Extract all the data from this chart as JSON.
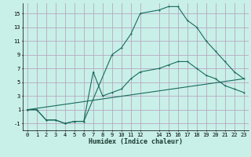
{
  "title": "",
  "xlabel": "Humidex (Indice chaleur)",
  "bg_color": "#c8f0e8",
  "grid_color": "#b8a8c0",
  "line_color": "#1a6b5e",
  "series1_x": [
    0,
    1,
    2,
    3,
    4,
    5,
    6,
    9,
    10,
    11,
    12,
    14,
    15,
    16,
    17,
    18,
    19,
    20,
    21,
    22,
    23
  ],
  "series1_y": [
    1,
    1,
    -0.5,
    -0.5,
    -1,
    -0.7,
    -0.7,
    9,
    10,
    12,
    15,
    15.5,
    16,
    16,
    14,
    13,
    11,
    9.5,
    8,
    6.5,
    5.5
  ],
  "series2_x": [
    0,
    1,
    2,
    3,
    4,
    5,
    6,
    7,
    8,
    9,
    10,
    11,
    12,
    14,
    15,
    16,
    17,
    18,
    19,
    20,
    21,
    22,
    23
  ],
  "series2_y": [
    1,
    1,
    -0.5,
    -0.5,
    -1,
    -0.7,
    -0.7,
    6.5,
    3,
    3.5,
    4,
    5.5,
    6.5,
    7,
    7.5,
    8,
    8,
    7,
    6,
    5.5,
    4.5,
    4,
    3.5
  ],
  "series3_x": [
    0,
    23
  ],
  "series3_y": [
    1,
    5.5
  ],
  "xlim": [
    -0.5,
    23.5
  ],
  "ylim": [
    -2,
    16.5
  ],
  "xticks": [
    0,
    1,
    2,
    3,
    4,
    5,
    6,
    7,
    8,
    9,
    10,
    11,
    12,
    14,
    15,
    16,
    17,
    18,
    19,
    20,
    21,
    22,
    23
  ],
  "yticks": [
    -1,
    1,
    3,
    5,
    7,
    9,
    11,
    13,
    15
  ]
}
